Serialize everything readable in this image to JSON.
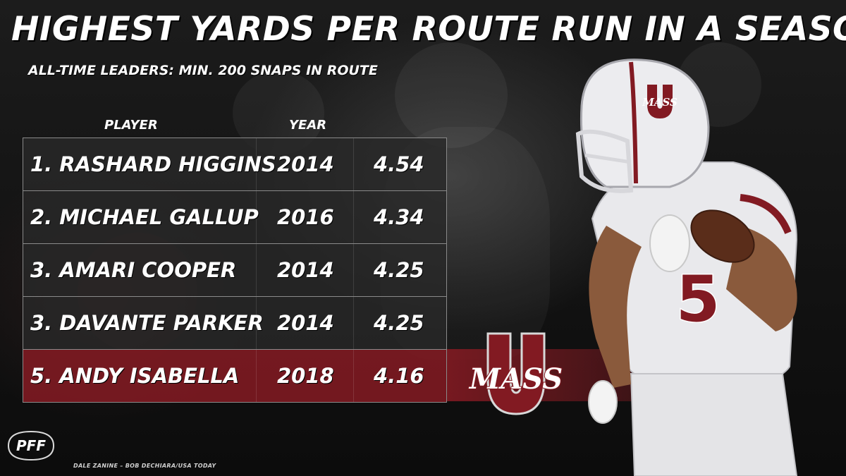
{
  "header": {
    "title": "HIGHEST YARDS PER ROUTE RUN IN A SEASON",
    "subtitle": "ALL-TIME LEADERS: MIN. 200 SNAPS IN ROUTE"
  },
  "table": {
    "columns": {
      "player": "PLAYER",
      "year": "YEAR"
    },
    "rows": [
      {
        "player": "1. RASHARD HIGGINS",
        "year": "2014",
        "value": "4.54",
        "highlight": false
      },
      {
        "player": "2. MICHAEL GALLUP",
        "year": "2016",
        "value": "4.34",
        "highlight": false
      },
      {
        "player": "3. AMARI COOPER",
        "year": "2014",
        "value": "4.25",
        "highlight": false
      },
      {
        "player": "3. DAVANTE PARKER",
        "year": "2014",
        "value": "4.25",
        "highlight": false
      },
      {
        "player": "5. ANDY ISABELLA",
        "year": "2018",
        "value": "4.16",
        "highlight": true
      }
    ]
  },
  "logo": {
    "letter": "U",
    "word": "MASS"
  },
  "helmet_logo": {
    "letter": "U",
    "word": "MASS"
  },
  "jersey": {
    "number": "5"
  },
  "brand": {
    "name": "PFF"
  },
  "credit": "DALE ZANINE – BOB DECHIARA/USA TODAY",
  "colors": {
    "accent": "#821A22",
    "row_bg": "#282828",
    "text": "#FFFFFF",
    "border": "#8A8A8A"
  }
}
